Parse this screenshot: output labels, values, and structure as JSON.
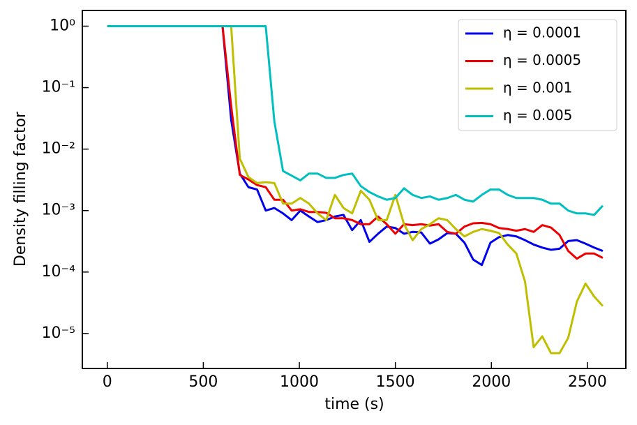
{
  "chart_data": {
    "type": "line",
    "x_label": "time (s)",
    "y_label": "Density filling factor",
    "x": [
      0,
      600,
      645,
      690,
      735,
      780,
      825,
      870,
      915,
      960,
      1005,
      1050,
      1095,
      1140,
      1185,
      1230,
      1275,
      1320,
      1365,
      1410,
      1455,
      1500,
      1545,
      1590,
      1635,
      1680,
      1725,
      1770,
      1815,
      1860,
      1905,
      1950,
      1995,
      2040,
      2085,
      2130,
      2175,
      2220,
      2265,
      2310,
      2355,
      2400,
      2445,
      2490,
      2535,
      2580
    ],
    "series": [
      {
        "name": "η = 0.0001",
        "color": "#0000ee",
        "values": [
          1,
          1,
          0.03,
          0.004,
          0.0024,
          0.0022,
          0.001,
          0.0011,
          0.0009,
          0.0007,
          0.001,
          0.0008,
          0.00065,
          0.0007,
          0.0008,
          0.00085,
          0.00048,
          0.0007,
          0.00031,
          0.00042,
          0.00055,
          0.00052,
          0.00042,
          0.00045,
          0.00044,
          0.00029,
          0.00034,
          0.00043,
          0.00042,
          0.0003,
          0.00016,
          0.00013,
          0.0003,
          0.00037,
          0.0004,
          0.00038,
          0.00033,
          0.00028,
          0.00025,
          0.00023,
          0.00024,
          0.00032,
          0.00033,
          0.00029,
          0.00025,
          0.00022
        ]
      },
      {
        "name": "η = 0.0005",
        "color": "#ee0000",
        "values": [
          1,
          1,
          0.05,
          0.0038,
          0.0032,
          0.0026,
          0.0024,
          0.0015,
          0.0015,
          0.001,
          0.00105,
          0.00095,
          0.00095,
          0.00092,
          0.00075,
          0.00075,
          0.0007,
          0.0006,
          0.0006,
          0.0008,
          0.0006,
          0.00042,
          0.0006,
          0.00058,
          0.0006,
          0.00057,
          0.0006,
          0.00045,
          0.00042,
          0.00055,
          0.00062,
          0.00063,
          0.0006,
          0.00052,
          0.0005,
          0.00047,
          0.0005,
          0.00045,
          0.00058,
          0.00053,
          0.0004,
          0.00022,
          0.000165,
          0.0002,
          0.0002,
          0.00017
        ]
      },
      {
        "name": "η = 0.001",
        "color": "#bfbf00",
        "values": [
          1,
          1,
          1,
          0.007,
          0.0035,
          0.0028,
          0.0029,
          0.0028,
          0.0013,
          0.0013,
          0.0016,
          0.0013,
          0.0009,
          0.0007,
          0.0018,
          0.0011,
          0.0009,
          0.0021,
          0.0015,
          0.0007,
          0.0007,
          0.0018,
          0.0006,
          0.00033,
          0.0005,
          0.0006,
          0.00075,
          0.0007,
          0.0005,
          0.00038,
          0.00045,
          0.0005,
          0.00047,
          0.00043,
          0.00028,
          0.0002,
          7e-05,
          6e-06,
          9e-06,
          4.8e-06,
          4.8e-06,
          8.5e-06,
          3.3e-05,
          6.5e-05,
          4e-05,
          2.8e-05
        ]
      },
      {
        "name": "η = 0.005",
        "color": "#00bfbf",
        "values": [
          1,
          1,
          1,
          1,
          1,
          1,
          1,
          0.028,
          0.0044,
          0.0037,
          0.0031,
          0.004,
          0.004,
          0.0034,
          0.0034,
          0.0038,
          0.004,
          0.0025,
          0.002,
          0.0017,
          0.0015,
          0.0016,
          0.0023,
          0.0018,
          0.0016,
          0.0017,
          0.0015,
          0.0016,
          0.0018,
          0.0015,
          0.0014,
          0.0018,
          0.0022,
          0.0022,
          0.0018,
          0.0016,
          0.0016,
          0.0016,
          0.0015,
          0.0013,
          0.0013,
          0.001,
          0.0009,
          0.0009,
          0.00085,
          0.0012
        ]
      }
    ],
    "xlim": [
      -130,
      2700
    ],
    "xticks": [
      0,
      500,
      1000,
      1500,
      2000,
      2500
    ],
    "ylim": [
      2.7e-06,
      1.8
    ],
    "log_y": true,
    "yticks": [
      {
        "value": 1,
        "label": "10⁰"
      },
      {
        "value": 0.1,
        "label": "10⁻¹"
      },
      {
        "value": 0.01,
        "label": "10⁻²"
      },
      {
        "value": 0.001,
        "label": "10⁻³"
      },
      {
        "value": 0.0001,
        "label": "10⁻⁴"
      },
      {
        "value": 1e-05,
        "label": "10⁻⁵"
      }
    ],
    "legend": "upper right",
    "grid": false
  }
}
